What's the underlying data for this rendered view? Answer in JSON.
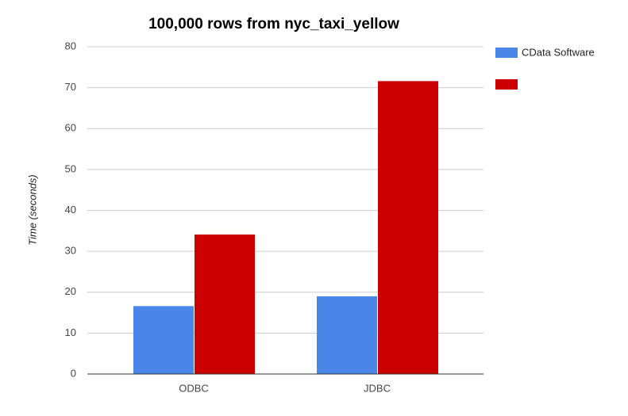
{
  "chart_data": {
    "type": "bar",
    "title": "100,000 rows from nyc_taxi_yellow",
    "y_label": "Time (seconds)",
    "categories": [
      "ODBC",
      "JDBC"
    ],
    "series": [
      {
        "name": "CData Software",
        "color": "#4a86e8",
        "values": [
          16.6,
          19.0
        ]
      },
      {
        "color": "#cc0000",
        "values": [
          34.1,
          71.6
        ]
      }
    ],
    "ylim": [
      0,
      80
    ],
    "yticks": [
      0,
      10,
      20,
      30,
      40,
      50,
      60,
      70,
      80
    ],
    "grid": true,
    "legend": "right"
  }
}
